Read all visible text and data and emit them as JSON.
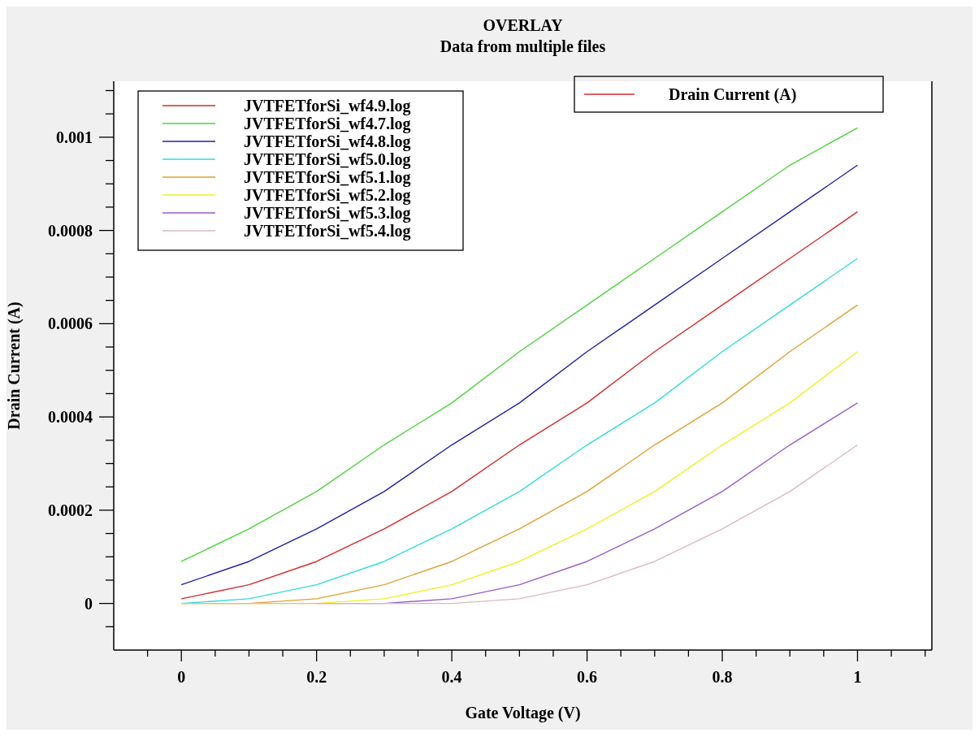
{
  "chart_data": {
    "type": "line",
    "title": "OVERLAY",
    "subtitle": "Data from multiple files",
    "xlabel": "Gate Voltage (V)",
    "ylabel": "Drain Current (A)",
    "annotations": [
      "Drain Current (A)"
    ],
    "x": [
      0,
      0.1,
      0.2,
      0.3,
      0.4,
      0.5,
      0.6,
      0.7,
      0.8,
      0.9,
      1
    ],
    "series": [
      {
        "name": "JVTFETforSi_wf4.9.log",
        "color": "#d42a2a",
        "values": [
          1e-05,
          4e-05,
          9e-05,
          0.00016,
          0.00024,
          0.00034,
          0.00043,
          0.00054,
          0.00064,
          0.00074,
          0.00084
        ]
      },
      {
        "name": "JVTFETforSi_wf4.7.log",
        "color": "#4cd43a",
        "values": [
          9e-05,
          0.00016,
          0.00024,
          0.00034,
          0.00043,
          0.00054,
          0.00064,
          0.00074,
          0.00084,
          0.00094,
          0.00102
        ]
      },
      {
        "name": "JVTFETforSi_wf4.8.log",
        "color": "#1f1fa8",
        "values": [
          4e-05,
          9e-05,
          0.00016,
          0.00024,
          0.00034,
          0.00043,
          0.00054,
          0.00064,
          0.00074,
          0.00084,
          0.00094
        ]
      },
      {
        "name": "JVTFETforSi_wf5.0.log",
        "color": "#30dcdc",
        "values": [
          0,
          1e-05,
          4e-05,
          9e-05,
          0.00016,
          0.00024,
          0.00034,
          0.00043,
          0.00054,
          0.00064,
          0.00074
        ]
      },
      {
        "name": "JVTFETforSi_wf5.1.log",
        "color": "#e0a030",
        "values": [
          0,
          0,
          1e-05,
          4e-05,
          9e-05,
          0.00016,
          0.00024,
          0.00034,
          0.00043,
          0.00054,
          0.00064
        ]
      },
      {
        "name": "JVTFETforSi_wf5.2.log",
        "color": "#f0f020",
        "values": [
          0,
          0,
          0,
          1e-05,
          4e-05,
          9e-05,
          0.00016,
          0.00024,
          0.00034,
          0.00043,
          0.00054
        ]
      },
      {
        "name": "JVTFETforSi_wf5.3.log",
        "color": "#9a5cc8",
        "values": [
          null,
          null,
          0,
          0,
          1e-05,
          4e-05,
          9e-05,
          0.00016,
          0.00024,
          0.00034,
          0.00043
        ]
      },
      {
        "name": "JVTFETforSi_wf5.4.log",
        "color": "#dcb8c0",
        "values": [
          0,
          0,
          0,
          0,
          0,
          1e-05,
          4e-05,
          9e-05,
          0.00016,
          0.00024,
          0.00034
        ]
      }
    ],
    "xlim": [
      -0.1,
      1.11
    ],
    "ylim": [
      -0.0001,
      0.00112
    ],
    "xticks": [
      {
        "value": -0.05,
        "label": null
      },
      0,
      {
        "value": 0.05,
        "label": null
      },
      {
        "value": 0.1,
        "label": null
      },
      {
        "value": 0.15,
        "label": null
      },
      0.2,
      {
        "value": 0.25,
        "label": null
      },
      {
        "value": 0.3,
        "label": null
      },
      {
        "value": 0.35,
        "label": null
      },
      0.4,
      {
        "value": 0.45,
        "label": null
      },
      {
        "value": 0.5,
        "label": null
      },
      {
        "value": 0.55,
        "label": null
      },
      0.6,
      {
        "value": 0.65,
        "label": null
      },
      {
        "value": 0.7,
        "label": null
      },
      {
        "value": 0.75,
        "label": null
      },
      0.8,
      {
        "value": 0.85,
        "label": null
      },
      {
        "value": 0.9,
        "label": null
      },
      {
        "value": 0.95,
        "label": null
      },
      1,
      {
        "value": 1.05,
        "label": null
      },
      {
        "value": 1.1,
        "label": null
      }
    ],
    "yticks": [
      {
        "value": -5e-05,
        "label": null
      },
      0,
      {
        "value": 5e-05,
        "label": null
      },
      {
        "value": 0.0001,
        "label": null
      },
      {
        "value": 0.00015,
        "label": null
      },
      0.0002,
      {
        "value": 0.00025,
        "label": null
      },
      {
        "value": 0.0003,
        "label": null
      },
      {
        "value": 0.00035,
        "label": null
      },
      0.0004,
      {
        "value": 0.00045,
        "label": null
      },
      {
        "value": 0.0005,
        "label": null
      },
      {
        "value": 0.00055,
        "label": null
      },
      0.0006,
      {
        "value": 0.00065,
        "label": null
      },
      {
        "value": 0.0007,
        "label": null
      },
      {
        "value": 0.00075,
        "label": null
      },
      0.0008,
      {
        "value": 0.00085,
        "label": null
      },
      {
        "value": 0.0009,
        "label": null
      },
      {
        "value": 0.00095,
        "label": null
      },
      0.001,
      {
        "value": 0.00105,
        "label": null
      },
      {
        "value": 0.0011,
        "label": null
      }
    ],
    "legend": "top left",
    "marker": "none",
    "line_style": "solid"
  }
}
